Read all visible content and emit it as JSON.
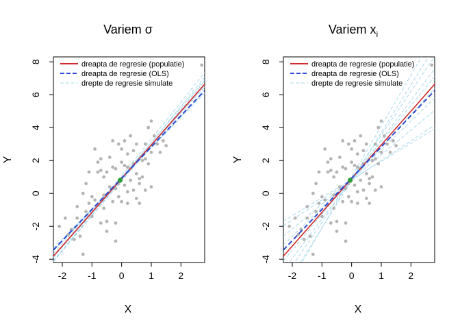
{
  "chart_data": [
    {
      "type": "scatter",
      "title": "Variem σ",
      "xlabel": "X",
      "ylabel": "Y",
      "xlim": [
        -2.3,
        2.8
      ],
      "ylim": [
        -4.2,
        8.3
      ],
      "x_ticks": [
        -2,
        -1,
        0,
        1,
        2
      ],
      "y_ticks": [
        -4,
        -2,
        0,
        2,
        4,
        6,
        8
      ],
      "grid": false,
      "legend_position": "top-left",
      "legend": [
        {
          "label": "dreapta de regresie (populatie)",
          "style": "solid",
          "color": "#d62728"
        },
        {
          "label": "dreapta de regresie (OLS)",
          "style": "dashed",
          "color": "#2948d6"
        },
        {
          "label": "drepte de regresie simulate",
          "style": "dashed",
          "color": "#a6d8ea"
        }
      ],
      "colors": {
        "points": "#b4b4b4",
        "population": "#d62728",
        "ols": "#2948d6",
        "simulated": "#a6d8ea",
        "mean_point": "#2e9e3a"
      },
      "points": {
        "x": [
          -2.1,
          -1.9,
          -1.8,
          -1.7,
          -1.6,
          -1.5,
          -1.5,
          -1.4,
          -1.3,
          -1.3,
          -1.2,
          -1.2,
          -1.1,
          -1.1,
          -1.0,
          -1.0,
          -0.9,
          -0.9,
          -0.8,
          -0.8,
          -0.7,
          -0.7,
          -0.7,
          -0.6,
          -0.6,
          -0.5,
          -0.5,
          -0.5,
          -0.4,
          -0.4,
          -0.3,
          -0.3,
          -0.3,
          -0.2,
          -0.2,
          -0.2,
          -0.1,
          -0.1,
          -0.1,
          0.0,
          0.0,
          0.0,
          0.1,
          0.1,
          0.1,
          0.2,
          0.2,
          0.2,
          0.3,
          0.3,
          0.3,
          0.4,
          0.4,
          0.4,
          0.5,
          0.5,
          0.5,
          0.6,
          0.6,
          0.7,
          0.7,
          0.8,
          0.8,
          0.9,
          0.9,
          1.0,
          1.0,
          1.1,
          1.2,
          1.3,
          1.4,
          1.5,
          2.7,
          -0.8,
          -0.6,
          -0.2,
          0.0,
          0.6,
          0.2,
          0.8,
          1.0
        ],
        "y": [
          -2.0,
          -1.5,
          -2.5,
          -2.2,
          -2.8,
          -1.5,
          -0.8,
          -2.6,
          0.0,
          -3.7,
          0.6,
          -1.1,
          1.3,
          -0.6,
          -0.2,
          -1.4,
          -0.4,
          2.7,
          -0.7,
          1.9,
          1.4,
          -1.8,
          2.1,
          -0.9,
          1.0,
          1.3,
          -2.3,
          -1.7,
          0.4,
          2.2,
          1.6,
          -0.5,
          3.2,
          1.5,
          -1.8,
          -2.9,
          3.0,
          0.6,
          -0.2,
          2.7,
          0.9,
          -0.5,
          3.2,
          1.7,
          0.5,
          2.4,
          0.1,
          -0.6,
          3.5,
          1.5,
          0.8,
          2.6,
          1.8,
          0.2,
          -0.3,
          3.0,
          1.2,
          0.6,
          -0.6,
          2.0,
          1.0,
          3.0,
          0.2,
          4.0,
          1.8,
          2.5,
          4.4,
          3.5,
          3.0,
          2.5,
          3.2,
          2.9,
          7.8,
          1.3,
          -0.1,
          0.3,
          1.9,
          0.9,
          1.6,
          2.1,
          0.4
        ]
      },
      "mean_point": {
        "x": -0.05,
        "y": 0.8
      },
      "population_line": {
        "intercept": 0.9,
        "slope": 2.05
      },
      "ols_line": {
        "intercept": 0.93,
        "slope": 1.9
      },
      "simulated_lines": [
        {
          "intercept": 0.85,
          "slope": 2.05
        },
        {
          "intercept": 0.95,
          "slope": 2.0
        },
        {
          "intercept": 0.9,
          "slope": 2.2
        },
        {
          "intercept": 0.8,
          "slope": 2.15
        },
        {
          "intercept": 1.0,
          "slope": 1.95
        },
        {
          "intercept": 0.92,
          "slope": 1.85
        },
        {
          "intercept": 0.75,
          "slope": 2.1
        },
        {
          "intercept": 1.05,
          "slope": 2.25
        },
        {
          "intercept": 0.88,
          "slope": 1.9
        },
        {
          "intercept": 0.97,
          "slope": 2.12
        }
      ]
    },
    {
      "type": "scatter",
      "title": "Variem x",
      "title_subscript": "i",
      "xlabel": "X",
      "ylabel": "Y",
      "xlim": [
        -2.3,
        2.8
      ],
      "ylim": [
        -4.2,
        8.3
      ],
      "x_ticks": [
        -2,
        -1,
        0,
        1,
        2
      ],
      "y_ticks": [
        -4,
        -2,
        0,
        2,
        4,
        6,
        8
      ],
      "grid": false,
      "legend_position": "top-left",
      "legend": [
        {
          "label": "dreapta de regresie (populatie)",
          "style": "solid",
          "color": "#d62728"
        },
        {
          "label": "dreapta de regresie (OLS)",
          "style": "dashed",
          "color": "#2948d6"
        },
        {
          "label": "drepte de regresie simulate",
          "style": "dashed",
          "color": "#a6d8ea"
        }
      ],
      "colors": {
        "points": "#b4b4b4",
        "population": "#d62728",
        "ols": "#2948d6",
        "simulated": "#a6d8ea",
        "mean_point": "#2e9e3a"
      },
      "points": {
        "x": [
          -2.1,
          -1.9,
          -1.8,
          -1.7,
          -1.6,
          -1.5,
          -1.5,
          -1.4,
          -1.3,
          -1.3,
          -1.2,
          -1.2,
          -1.1,
          -1.1,
          -1.0,
          -1.0,
          -0.9,
          -0.9,
          -0.8,
          -0.8,
          -0.7,
          -0.7,
          -0.7,
          -0.6,
          -0.6,
          -0.5,
          -0.5,
          -0.5,
          -0.4,
          -0.4,
          -0.3,
          -0.3,
          -0.3,
          -0.2,
          -0.2,
          -0.2,
          -0.1,
          -0.1,
          -0.1,
          0.0,
          0.0,
          0.0,
          0.1,
          0.1,
          0.1,
          0.2,
          0.2,
          0.2,
          0.3,
          0.3,
          0.3,
          0.4,
          0.4,
          0.4,
          0.5,
          0.5,
          0.5,
          0.6,
          0.6,
          0.7,
          0.7,
          0.8,
          0.8,
          0.9,
          0.9,
          1.0,
          1.0,
          1.1,
          1.2,
          1.3,
          1.4,
          1.5,
          2.7,
          -0.8,
          -0.6,
          -0.2,
          0.0,
          0.6,
          0.2,
          0.8,
          1.0
        ],
        "y": [
          -2.0,
          -1.5,
          -2.5,
          -2.2,
          -2.8,
          -1.5,
          -0.8,
          -2.6,
          0.0,
          -3.7,
          0.6,
          -1.1,
          1.3,
          -0.6,
          -0.2,
          -1.4,
          -0.4,
          2.7,
          -0.7,
          1.9,
          1.4,
          -1.8,
          2.1,
          -0.9,
          1.0,
          1.3,
          -2.3,
          -1.7,
          0.4,
          2.2,
          1.6,
          -0.5,
          3.2,
          1.5,
          -1.8,
          -2.9,
          3.0,
          0.6,
          -0.2,
          2.7,
          0.9,
          -0.5,
          3.2,
          1.7,
          0.5,
          2.4,
          0.1,
          -0.6,
          3.5,
          1.5,
          0.8,
          2.6,
          1.8,
          0.2,
          -0.3,
          3.0,
          1.2,
          0.6,
          -0.6,
          2.0,
          1.0,
          3.0,
          0.2,
          4.0,
          1.8,
          2.5,
          4.4,
          3.5,
          3.0,
          2.5,
          3.2,
          2.9,
          7.8,
          1.3,
          -0.1,
          0.3,
          1.9,
          0.9,
          1.6,
          2.1,
          0.4
        ]
      },
      "mean_point": {
        "x": -0.05,
        "y": 0.8
      },
      "population_line": {
        "intercept": 0.9,
        "slope": 2.05
      },
      "ols_line": {
        "intercept": 0.93,
        "slope": 1.9
      },
      "simulated_lines": [
        {
          "intercept": 0.8,
          "slope": 1.2
        },
        {
          "intercept": 0.85,
          "slope": 1.5
        },
        {
          "intercept": 0.9,
          "slope": 1.75
        },
        {
          "intercept": 0.8,
          "slope": 2.0
        },
        {
          "intercept": 0.95,
          "slope": 2.2
        },
        {
          "intercept": 0.85,
          "slope": 2.4
        },
        {
          "intercept": 0.9,
          "slope": 2.65
        },
        {
          "intercept": 0.8,
          "slope": 2.9
        },
        {
          "intercept": 1.0,
          "slope": 3.1
        },
        {
          "intercept": 0.85,
          "slope": 1.1
        }
      ]
    }
  ]
}
